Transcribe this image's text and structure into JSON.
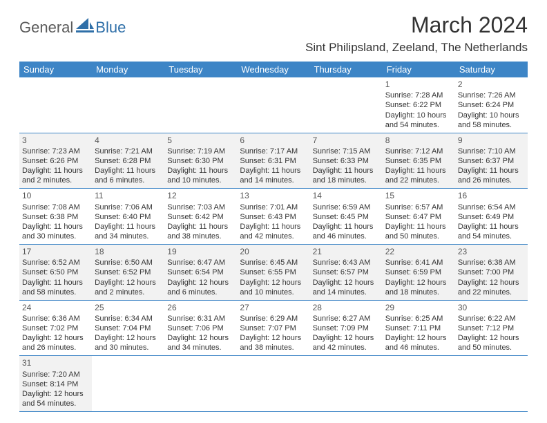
{
  "logo": {
    "text1": "General",
    "text2": "Blue"
  },
  "title": "March 2024",
  "location": "Sint Philipsland, Zeeland, The Netherlands",
  "weekday_header_bg": "#3d85c6",
  "weekday_header_fg": "#ffffff",
  "border_color": "#3d85c6",
  "shaded_row_bg": "#f2f2f2",
  "weekdays": [
    "Sunday",
    "Monday",
    "Tuesday",
    "Wednesday",
    "Thursday",
    "Friday",
    "Saturday"
  ],
  "weeks": [
    {
      "shaded": false,
      "days": [
        null,
        null,
        null,
        null,
        null,
        {
          "num": "1",
          "sunrise": "Sunrise: 7:28 AM",
          "sunset": "Sunset: 6:22 PM",
          "daylight1": "Daylight: 10 hours",
          "daylight2": "and 54 minutes."
        },
        {
          "num": "2",
          "sunrise": "Sunrise: 7:26 AM",
          "sunset": "Sunset: 6:24 PM",
          "daylight1": "Daylight: 10 hours",
          "daylight2": "and 58 minutes."
        }
      ]
    },
    {
      "shaded": true,
      "days": [
        {
          "num": "3",
          "sunrise": "Sunrise: 7:23 AM",
          "sunset": "Sunset: 6:26 PM",
          "daylight1": "Daylight: 11 hours",
          "daylight2": "and 2 minutes."
        },
        {
          "num": "4",
          "sunrise": "Sunrise: 7:21 AM",
          "sunset": "Sunset: 6:28 PM",
          "daylight1": "Daylight: 11 hours",
          "daylight2": "and 6 minutes."
        },
        {
          "num": "5",
          "sunrise": "Sunrise: 7:19 AM",
          "sunset": "Sunset: 6:30 PM",
          "daylight1": "Daylight: 11 hours",
          "daylight2": "and 10 minutes."
        },
        {
          "num": "6",
          "sunrise": "Sunrise: 7:17 AM",
          "sunset": "Sunset: 6:31 PM",
          "daylight1": "Daylight: 11 hours",
          "daylight2": "and 14 minutes."
        },
        {
          "num": "7",
          "sunrise": "Sunrise: 7:15 AM",
          "sunset": "Sunset: 6:33 PM",
          "daylight1": "Daylight: 11 hours",
          "daylight2": "and 18 minutes."
        },
        {
          "num": "8",
          "sunrise": "Sunrise: 7:12 AM",
          "sunset": "Sunset: 6:35 PM",
          "daylight1": "Daylight: 11 hours",
          "daylight2": "and 22 minutes."
        },
        {
          "num": "9",
          "sunrise": "Sunrise: 7:10 AM",
          "sunset": "Sunset: 6:37 PM",
          "daylight1": "Daylight: 11 hours",
          "daylight2": "and 26 minutes."
        }
      ]
    },
    {
      "shaded": false,
      "days": [
        {
          "num": "10",
          "sunrise": "Sunrise: 7:08 AM",
          "sunset": "Sunset: 6:38 PM",
          "daylight1": "Daylight: 11 hours",
          "daylight2": "and 30 minutes."
        },
        {
          "num": "11",
          "sunrise": "Sunrise: 7:06 AM",
          "sunset": "Sunset: 6:40 PM",
          "daylight1": "Daylight: 11 hours",
          "daylight2": "and 34 minutes."
        },
        {
          "num": "12",
          "sunrise": "Sunrise: 7:03 AM",
          "sunset": "Sunset: 6:42 PM",
          "daylight1": "Daylight: 11 hours",
          "daylight2": "and 38 minutes."
        },
        {
          "num": "13",
          "sunrise": "Sunrise: 7:01 AM",
          "sunset": "Sunset: 6:43 PM",
          "daylight1": "Daylight: 11 hours",
          "daylight2": "and 42 minutes."
        },
        {
          "num": "14",
          "sunrise": "Sunrise: 6:59 AM",
          "sunset": "Sunset: 6:45 PM",
          "daylight1": "Daylight: 11 hours",
          "daylight2": "and 46 minutes."
        },
        {
          "num": "15",
          "sunrise": "Sunrise: 6:57 AM",
          "sunset": "Sunset: 6:47 PM",
          "daylight1": "Daylight: 11 hours",
          "daylight2": "and 50 minutes."
        },
        {
          "num": "16",
          "sunrise": "Sunrise: 6:54 AM",
          "sunset": "Sunset: 6:49 PM",
          "daylight1": "Daylight: 11 hours",
          "daylight2": "and 54 minutes."
        }
      ]
    },
    {
      "shaded": true,
      "days": [
        {
          "num": "17",
          "sunrise": "Sunrise: 6:52 AM",
          "sunset": "Sunset: 6:50 PM",
          "daylight1": "Daylight: 11 hours",
          "daylight2": "and 58 minutes."
        },
        {
          "num": "18",
          "sunrise": "Sunrise: 6:50 AM",
          "sunset": "Sunset: 6:52 PM",
          "daylight1": "Daylight: 12 hours",
          "daylight2": "and 2 minutes."
        },
        {
          "num": "19",
          "sunrise": "Sunrise: 6:47 AM",
          "sunset": "Sunset: 6:54 PM",
          "daylight1": "Daylight: 12 hours",
          "daylight2": "and 6 minutes."
        },
        {
          "num": "20",
          "sunrise": "Sunrise: 6:45 AM",
          "sunset": "Sunset: 6:55 PM",
          "daylight1": "Daylight: 12 hours",
          "daylight2": "and 10 minutes."
        },
        {
          "num": "21",
          "sunrise": "Sunrise: 6:43 AM",
          "sunset": "Sunset: 6:57 PM",
          "daylight1": "Daylight: 12 hours",
          "daylight2": "and 14 minutes."
        },
        {
          "num": "22",
          "sunrise": "Sunrise: 6:41 AM",
          "sunset": "Sunset: 6:59 PM",
          "daylight1": "Daylight: 12 hours",
          "daylight2": "and 18 minutes."
        },
        {
          "num": "23",
          "sunrise": "Sunrise: 6:38 AM",
          "sunset": "Sunset: 7:00 PM",
          "daylight1": "Daylight: 12 hours",
          "daylight2": "and 22 minutes."
        }
      ]
    },
    {
      "shaded": false,
      "days": [
        {
          "num": "24",
          "sunrise": "Sunrise: 6:36 AM",
          "sunset": "Sunset: 7:02 PM",
          "daylight1": "Daylight: 12 hours",
          "daylight2": "and 26 minutes."
        },
        {
          "num": "25",
          "sunrise": "Sunrise: 6:34 AM",
          "sunset": "Sunset: 7:04 PM",
          "daylight1": "Daylight: 12 hours",
          "daylight2": "and 30 minutes."
        },
        {
          "num": "26",
          "sunrise": "Sunrise: 6:31 AM",
          "sunset": "Sunset: 7:06 PM",
          "daylight1": "Daylight: 12 hours",
          "daylight2": "and 34 minutes."
        },
        {
          "num": "27",
          "sunrise": "Sunrise: 6:29 AM",
          "sunset": "Sunset: 7:07 PM",
          "daylight1": "Daylight: 12 hours",
          "daylight2": "and 38 minutes."
        },
        {
          "num": "28",
          "sunrise": "Sunrise: 6:27 AM",
          "sunset": "Sunset: 7:09 PM",
          "daylight1": "Daylight: 12 hours",
          "daylight2": "and 42 minutes."
        },
        {
          "num": "29",
          "sunrise": "Sunrise: 6:25 AM",
          "sunset": "Sunset: 7:11 PM",
          "daylight1": "Daylight: 12 hours",
          "daylight2": "and 46 minutes."
        },
        {
          "num": "30",
          "sunrise": "Sunrise: 6:22 AM",
          "sunset": "Sunset: 7:12 PM",
          "daylight1": "Daylight: 12 hours",
          "daylight2": "and 50 minutes."
        }
      ]
    },
    {
      "shaded": true,
      "days": [
        {
          "num": "31",
          "sunrise": "Sunrise: 7:20 AM",
          "sunset": "Sunset: 8:14 PM",
          "daylight1": "Daylight: 12 hours",
          "daylight2": "and 54 minutes."
        },
        null,
        null,
        null,
        null,
        null,
        null
      ]
    }
  ]
}
